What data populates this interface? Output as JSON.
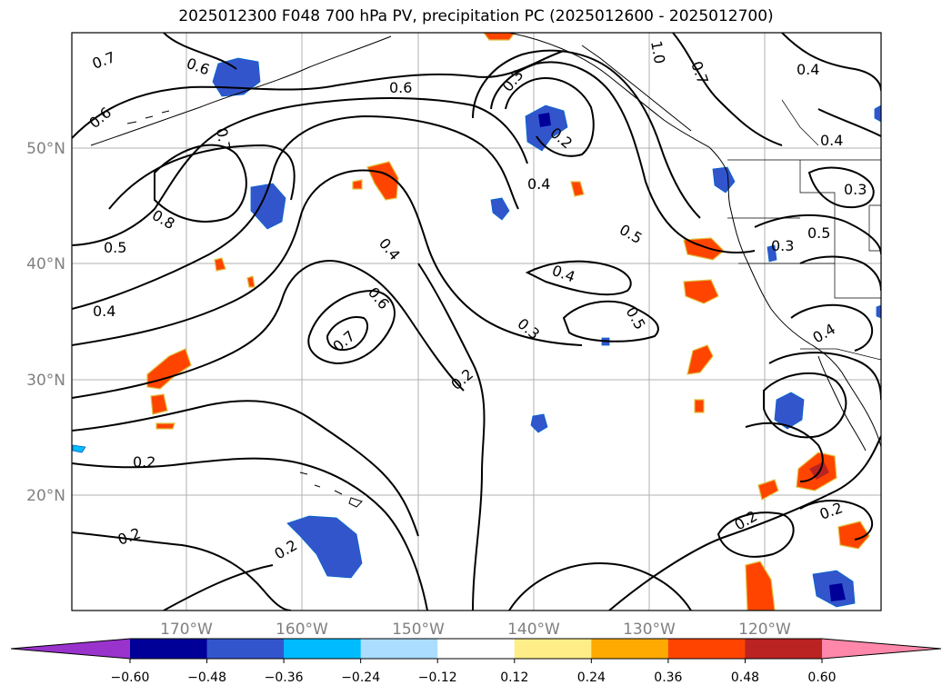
{
  "title": "2025012300 F048 700 hPa PV, precipitation PC (2025012600 - 2025012700)",
  "lon_ticks": [
    "170°W",
    "160°W",
    "150°W",
    "140°W",
    "130°W",
    "120°W"
  ],
  "lat_ticks": [
    "50°N",
    "40°N",
    "30°N",
    "20°N"
  ],
  "contour_labels": [
    "0.7",
    "0.6",
    "0.6",
    "0.6",
    "0.7",
    "0.8",
    "0.5",
    "0.4",
    "0.2",
    "0.2",
    "0.2",
    "0.4",
    "0.6",
    "0.7",
    "0.3",
    "0.2",
    "0.3",
    "0.2",
    "0.4",
    "0.4",
    "0.5",
    "0.5",
    "0.4",
    "0.4",
    "0.3",
    "0.5",
    "0.3",
    "0.4",
    "0.2",
    "0.2",
    "0.7",
    "1.0"
  ],
  "colorbar": {
    "ticks": [
      "−0.60",
      "−0.48",
      "−0.36",
      "−0.24",
      "−0.12",
      "0.12",
      "0.24",
      "0.36",
      "0.48",
      "0.60"
    ],
    "colors": [
      "#9933cc",
      "#000099",
      "#3355cc",
      "#00bbff",
      "#aaddff",
      "#ffffff",
      "#ffee88",
      "#ffaa00",
      "#ff4400",
      "#bb2222",
      "#ff88aa"
    ]
  },
  "precip_colors": {
    "neg_strong": "#000099",
    "neg_mid": "#3355cc",
    "neg_weak": "#00bbff",
    "pos_weak": "#ffee88",
    "pos_mid": "#ffaa00",
    "pos_strong": "#ff4400",
    "pos_max": "#bb2222"
  }
}
